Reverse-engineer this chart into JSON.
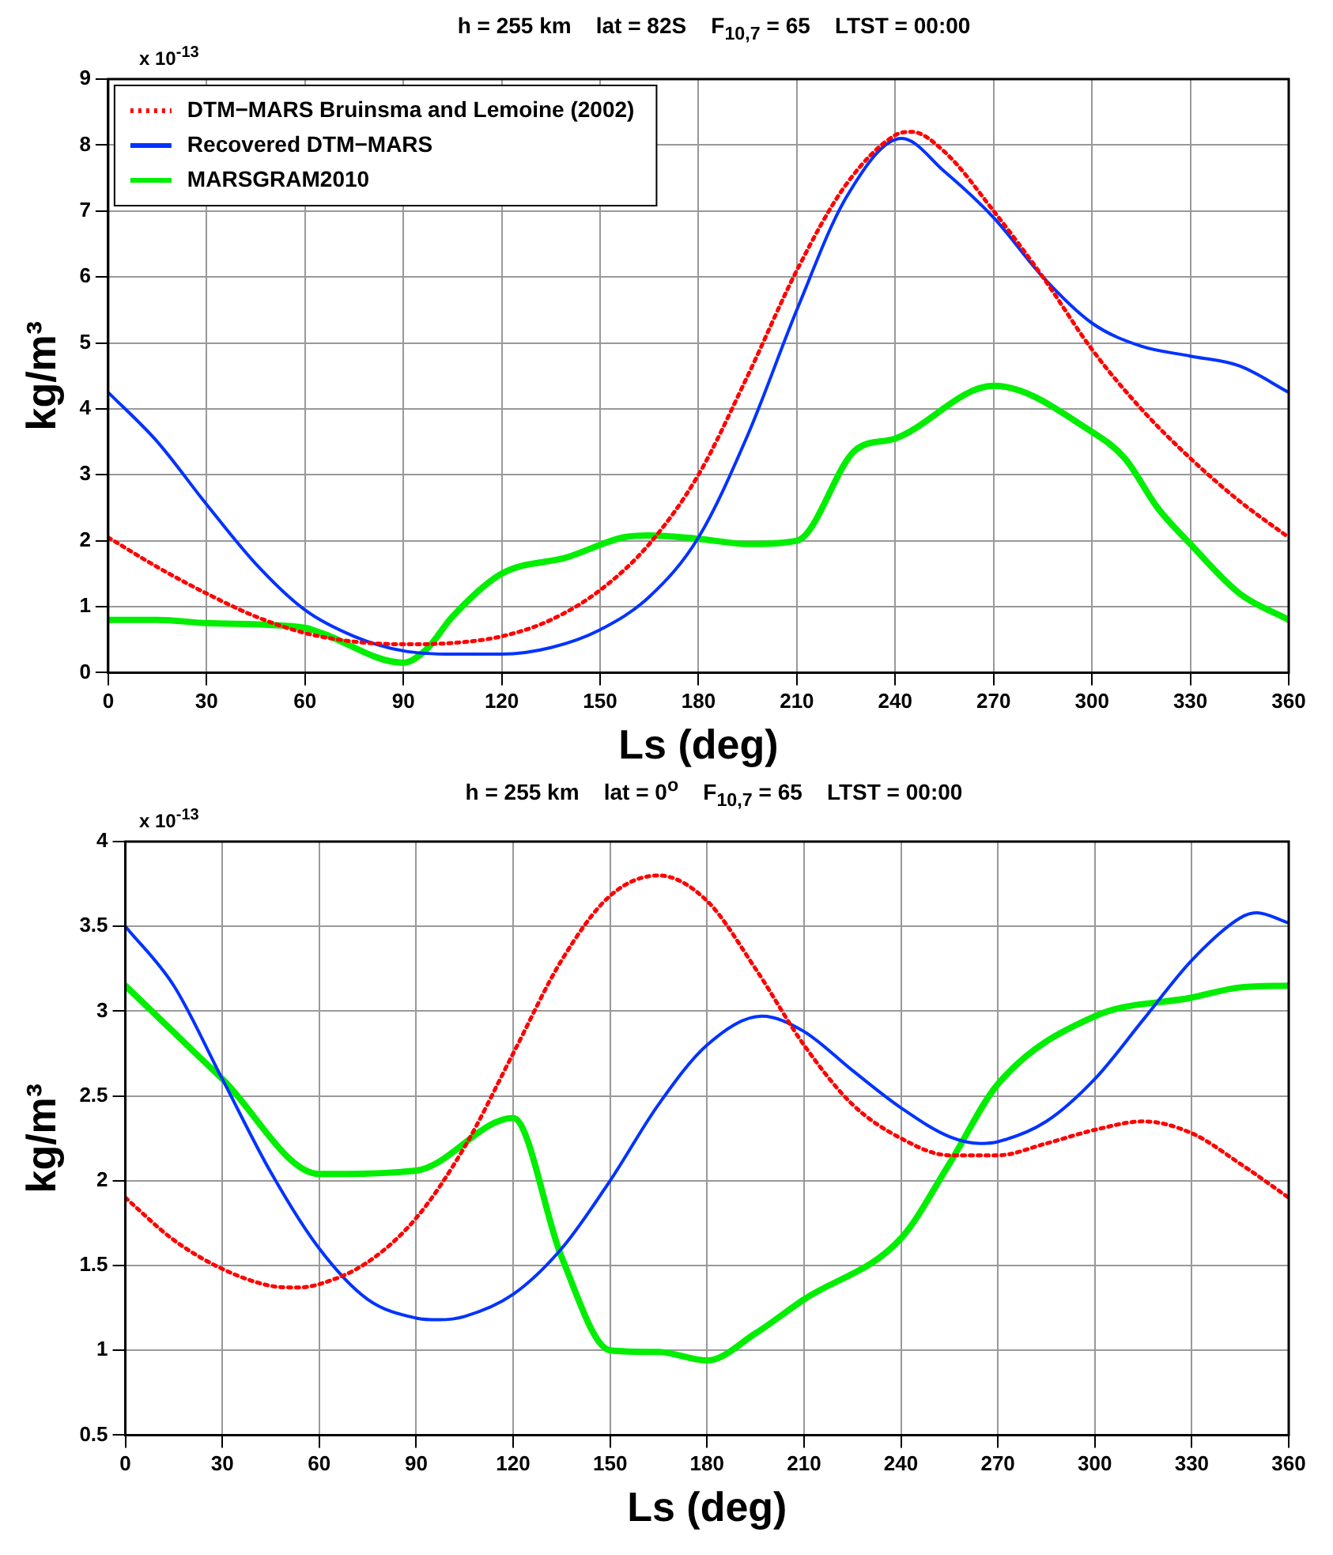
{
  "chart_data": [
    {
      "type": "line",
      "title": "h = 255 km    lat = 82S    F$_{10,7}$ = 65    LTST = 00:00",
      "xlabel": "Ls (deg)",
      "ylabel": "kg/m³",
      "annotations": [
        "x 10$^{-13}$"
      ],
      "xlim": [
        0,
        360
      ],
      "xticks": [
        0,
        30,
        60,
        90,
        120,
        150,
        180,
        210,
        240,
        270,
        300,
        330,
        360
      ],
      "ylim": [
        0,
        9
      ],
      "yticks": [
        0,
        1,
        2,
        3,
        4,
        5,
        6,
        7,
        8,
        9
      ],
      "grid": true,
      "legend": "top left",
      "marker": "none",
      "series": [
        {
          "name": "DTM−MARS Bruinsma and Lemoine (2002)",
          "color": "#ff0000",
          "line_style": "dotted",
          "x": [
            0,
            15,
            30,
            45,
            60,
            75,
            90,
            105,
            120,
            135,
            150,
            165,
            180,
            195,
            210,
            225,
            240,
            245,
            255,
            270,
            285,
            300,
            315,
            330,
            345,
            360
          ],
          "values": [
            2.05,
            1.6,
            1.2,
            0.85,
            0.6,
            0.47,
            0.43,
            0.45,
            0.55,
            0.8,
            1.25,
            1.95,
            3.0,
            4.5,
            6.1,
            7.4,
            8.15,
            8.2,
            7.9,
            7.0,
            6.0,
            4.9,
            4.0,
            3.25,
            2.6,
            2.05
          ]
        },
        {
          "name": "Recovered DTM−MARS",
          "color": "#0033ff",
          "line_style": "solid",
          "x": [
            0,
            15,
            30,
            45,
            60,
            75,
            90,
            105,
            120,
            135,
            150,
            165,
            180,
            195,
            210,
            225,
            242,
            255,
            270,
            285,
            300,
            315,
            330,
            345,
            360
          ],
          "values": [
            4.25,
            3.5,
            2.55,
            1.65,
            0.95,
            0.55,
            0.33,
            0.28,
            0.28,
            0.38,
            0.65,
            1.15,
            2.05,
            3.6,
            5.5,
            7.2,
            8.1,
            7.6,
            6.9,
            6.0,
            5.3,
            4.95,
            4.8,
            4.65,
            4.25
          ]
        },
        {
          "name": "MARSGRAM2010",
          "color": "#00ee00",
          "line_style": "solid",
          "x": [
            0,
            15,
            30,
            60,
            65,
            90,
            97,
            105,
            120,
            140,
            157,
            165,
            180,
            195,
            210,
            228,
            240,
            270,
            300,
            310,
            320,
            330,
            345,
            360
          ],
          "values": [
            0.8,
            0.8,
            0.75,
            0.68,
            0.6,
            0.15,
            0.35,
            0.85,
            1.5,
            1.75,
            2.05,
            2.08,
            2.03,
            1.95,
            2.0,
            3.38,
            3.55,
            4.35,
            3.65,
            3.25,
            2.5,
            1.95,
            1.2,
            0.8
          ]
        }
      ]
    },
    {
      "type": "line",
      "title": "h = 255 km    lat = 0$^{o}$    F$_{10,7}$ = 65    LTST = 00:00",
      "xlabel": "Ls (deg)",
      "ylabel": "kg/m³",
      "annotations": [
        "x 10$^{-13}$"
      ],
      "xlim": [
        0,
        360
      ],
      "xticks": [
        0,
        30,
        60,
        90,
        120,
        150,
        180,
        210,
        240,
        270,
        300,
        330,
        360
      ],
      "ylim": [
        0.5,
        4
      ],
      "yticks": [
        0.5,
        1,
        1.5,
        2,
        2.5,
        3,
        3.5,
        4
      ],
      "grid": true,
      "marker": "none",
      "series": [
        {
          "color": "#ff0000",
          "line_style": "dotted",
          "x": [
            0,
            15,
            30,
            45,
            53,
            60,
            75,
            90,
            105,
            120,
            135,
            150,
            165,
            180,
            195,
            210,
            225,
            240,
            255,
            270,
            285,
            300,
            315,
            330,
            345,
            360
          ],
          "values": [
            1.9,
            1.65,
            1.48,
            1.38,
            1.37,
            1.39,
            1.52,
            1.78,
            2.2,
            2.75,
            3.3,
            3.68,
            3.8,
            3.65,
            3.25,
            2.8,
            2.45,
            2.25,
            2.15,
            2.15,
            2.22,
            2.3,
            2.35,
            2.28,
            2.1,
            1.9
          ]
        },
        {
          "color": "#0033ff",
          "line_style": "solid",
          "x": [
            0,
            15,
            30,
            45,
            60,
            75,
            90,
            97,
            105,
            120,
            135,
            150,
            165,
            180,
            197,
            210,
            225,
            240,
            255,
            265,
            270,
            285,
            300,
            315,
            330,
            345,
            350,
            360
          ],
          "values": [
            3.5,
            3.15,
            2.6,
            2.05,
            1.6,
            1.3,
            1.19,
            1.18,
            1.2,
            1.33,
            1.6,
            2.0,
            2.45,
            2.8,
            2.97,
            2.88,
            2.65,
            2.43,
            2.26,
            2.22,
            2.23,
            2.35,
            2.6,
            2.95,
            3.3,
            3.55,
            3.58,
            3.52
          ]
        },
        {
          "color": "#00ee00",
          "line_style": "solid",
          "x": [
            0,
            30,
            60,
            90,
            120,
            135,
            150,
            165,
            180,
            195,
            210,
            240,
            255,
            270,
            300,
            330,
            345,
            360
          ],
          "values": [
            3.15,
            2.6,
            2.04,
            2.06,
            2.37,
            1.55,
            1.0,
            0.99,
            0.94,
            1.1,
            1.3,
            1.66,
            2.1,
            2.57,
            2.97,
            3.08,
            3.14,
            3.15
          ]
        }
      ]
    }
  ]
}
